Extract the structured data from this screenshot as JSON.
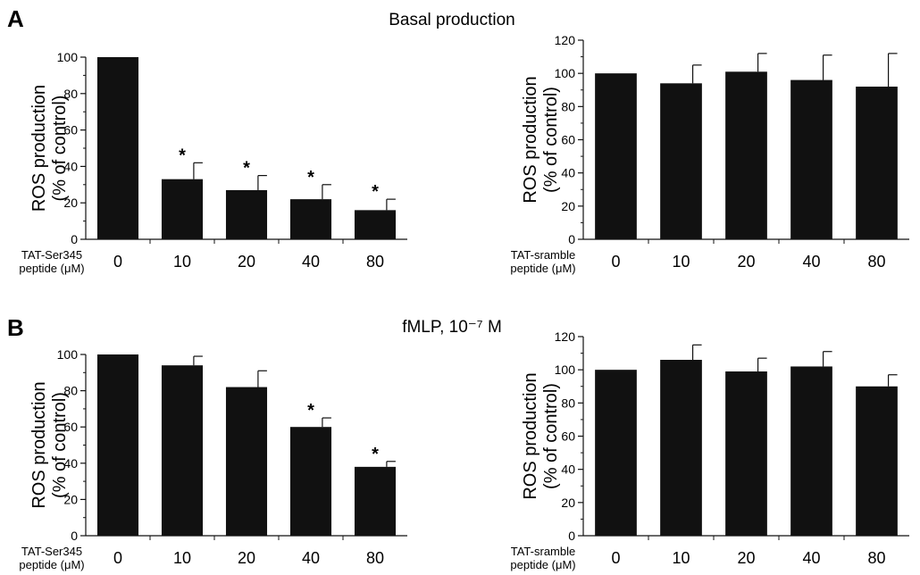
{
  "colors": {
    "bar": "#111111",
    "axis": "#111111",
    "background": "#ffffff"
  },
  "panels": [
    {
      "letter": "A",
      "title": "Basal production"
    },
    {
      "letter": "B",
      "title": "fMLP, 10⁻⁷ M"
    }
  ],
  "chart_data": [
    {
      "type": "bar",
      "panel": "A",
      "position": "left",
      "categories": [
        "0",
        "10",
        "20",
        "40",
        "80"
      ],
      "values": [
        100,
        33,
        27,
        22,
        16
      ],
      "error_bars": [
        0,
        9,
        8,
        8,
        6
      ],
      "significance": [
        "",
        "*",
        "*",
        "*",
        "*"
      ],
      "ylabel": [
        "ROS production",
        "(% of control)"
      ],
      "xlabel": [
        "TAT-Ser345",
        "peptide (μM)"
      ],
      "ylim": [
        0,
        100
      ],
      "yticks": [
        0,
        20,
        40,
        60,
        80,
        100
      ],
      "ytick_labels": [
        "0",
        "20",
        "40",
        "60",
        "80",
        "100"
      ]
    },
    {
      "type": "bar",
      "panel": "A",
      "position": "right",
      "categories": [
        "0",
        "10",
        "20",
        "40",
        "80"
      ],
      "values": [
        100,
        94,
        101,
        96,
        92
      ],
      "error_bars": [
        0,
        11,
        11,
        15,
        20
      ],
      "significance": [
        "",
        "",
        "",
        "",
        ""
      ],
      "ylabel": [
        "ROS production",
        "(% of control)"
      ],
      "xlabel": [
        "TAT-sramble",
        "peptide (μM)"
      ],
      "ylim": [
        0,
        120
      ],
      "yticks": [
        0,
        20,
        40,
        60,
        80,
        100,
        120
      ],
      "ytick_labels": [
        "0",
        "20",
        "40",
        "60",
        "80",
        "100",
        "120"
      ]
    },
    {
      "type": "bar",
      "panel": "B",
      "position": "left",
      "categories": [
        "0",
        "10",
        "20",
        "40",
        "80"
      ],
      "values": [
        100,
        94,
        82,
        60,
        38
      ],
      "error_bars": [
        0,
        5,
        9,
        5,
        3
      ],
      "significance": [
        "",
        "",
        "",
        "*",
        "*"
      ],
      "ylabel": [
        "ROS production",
        "(% of control)"
      ],
      "xlabel": [
        "TAT-Ser345",
        "peptide (μM)"
      ],
      "ylim": [
        0,
        100
      ],
      "yticks": [
        0,
        20,
        40,
        60,
        80,
        100
      ],
      "ytick_labels": [
        "0",
        "20",
        "40",
        "60",
        "80",
        "100"
      ]
    },
    {
      "type": "bar",
      "panel": "B",
      "position": "right",
      "categories": [
        "0",
        "10",
        "20",
        "40",
        "80"
      ],
      "values": [
        100,
        106,
        99,
        102,
        90
      ],
      "error_bars": [
        0,
        9,
        8,
        9,
        7
      ],
      "significance": [
        "",
        "",
        "",
        "",
        ""
      ],
      "ylabel": [
        "ROS production",
        "(% of control)"
      ],
      "xlabel": [
        "TAT-sramble",
        "peptide (μM)"
      ],
      "ylim": [
        0,
        120
      ],
      "yticks": [
        0,
        20,
        40,
        60,
        80,
        100,
        120
      ],
      "ytick_labels": [
        "0",
        "20",
        "40",
        "60",
        "80",
        "100",
        "120"
      ]
    }
  ]
}
